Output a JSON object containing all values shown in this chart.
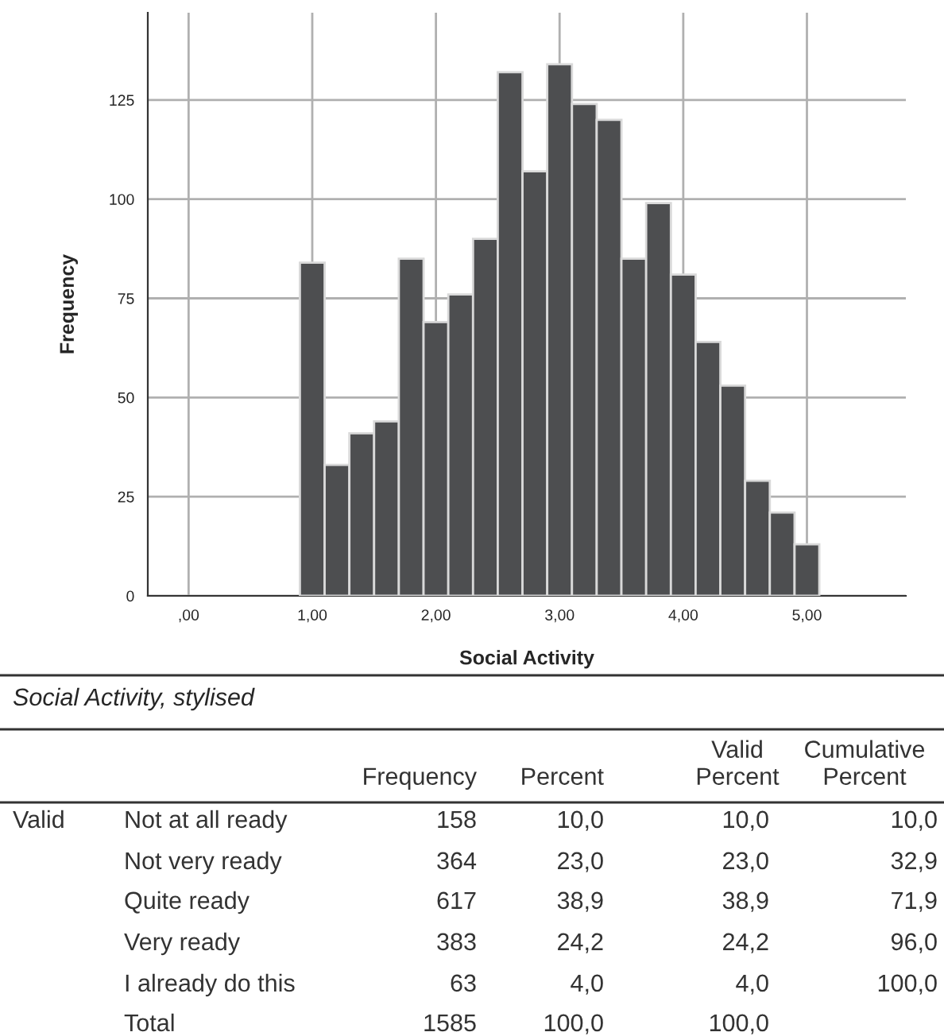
{
  "chart_data": [
    {
      "type": "histogram",
      "xlabel": "Social Activity",
      "ylabel": "Frequency",
      "bins": [
        0.9,
        1.1,
        1.3,
        1.5,
        1.7,
        1.9,
        2.1,
        2.3,
        2.5,
        2.7,
        2.9,
        3.1,
        3.3,
        3.5,
        3.7,
        3.9,
        4.1,
        4.3,
        4.5,
        4.7,
        4.9,
        5.1
      ],
      "values": [
        84,
        33,
        41,
        44,
        85,
        69,
        76,
        90,
        132,
        107,
        134,
        124,
        120,
        85,
        99,
        81,
        64,
        53,
        29,
        21,
        13
      ],
      "color": "#4d4e50",
      "xlim": [
        -0.33,
        5.8
      ],
      "ylim": [
        0,
        147
      ],
      "xticks": [
        {
          "value": 0,
          "label": ",00"
        },
        {
          "value": 1,
          "label": "1,00"
        },
        {
          "value": 2,
          "label": "2,00"
        },
        {
          "value": 3,
          "label": "3,00"
        },
        {
          "value": 4,
          "label": "4,00"
        },
        {
          "value": 5,
          "label": "5,00"
        }
      ],
      "yticks": [
        0,
        25,
        50,
        75,
        100,
        125
      ],
      "grid": true
    },
    {
      "type": "other",
      "title": "Social Activity, stylised",
      "categories": [
        "Frequency",
        "Percent",
        "Valid\nPercent",
        "Cumulative\nPercent"
      ],
      "y_categories": [
        "Not at all ready",
        "Not very ready",
        "Quite ready",
        "Very ready",
        "I already do this",
        "Total"
      ],
      "cell_labels": [
        [
          "158",
          "10,0",
          "10,0",
          "10,0"
        ],
        [
          "364",
          "23,0",
          "23,0",
          "32,9"
        ],
        [
          "617",
          "38,9",
          "38,9",
          "71,9"
        ],
        [
          "383",
          "24,2",
          "24,2",
          "96,0"
        ],
        [
          "63",
          "4,0",
          "4,0",
          "100,0"
        ],
        [
          "1585",
          "100,0",
          "100,0",
          null
        ]
      ],
      "annotations": [
        "Valid"
      ]
    }
  ]
}
